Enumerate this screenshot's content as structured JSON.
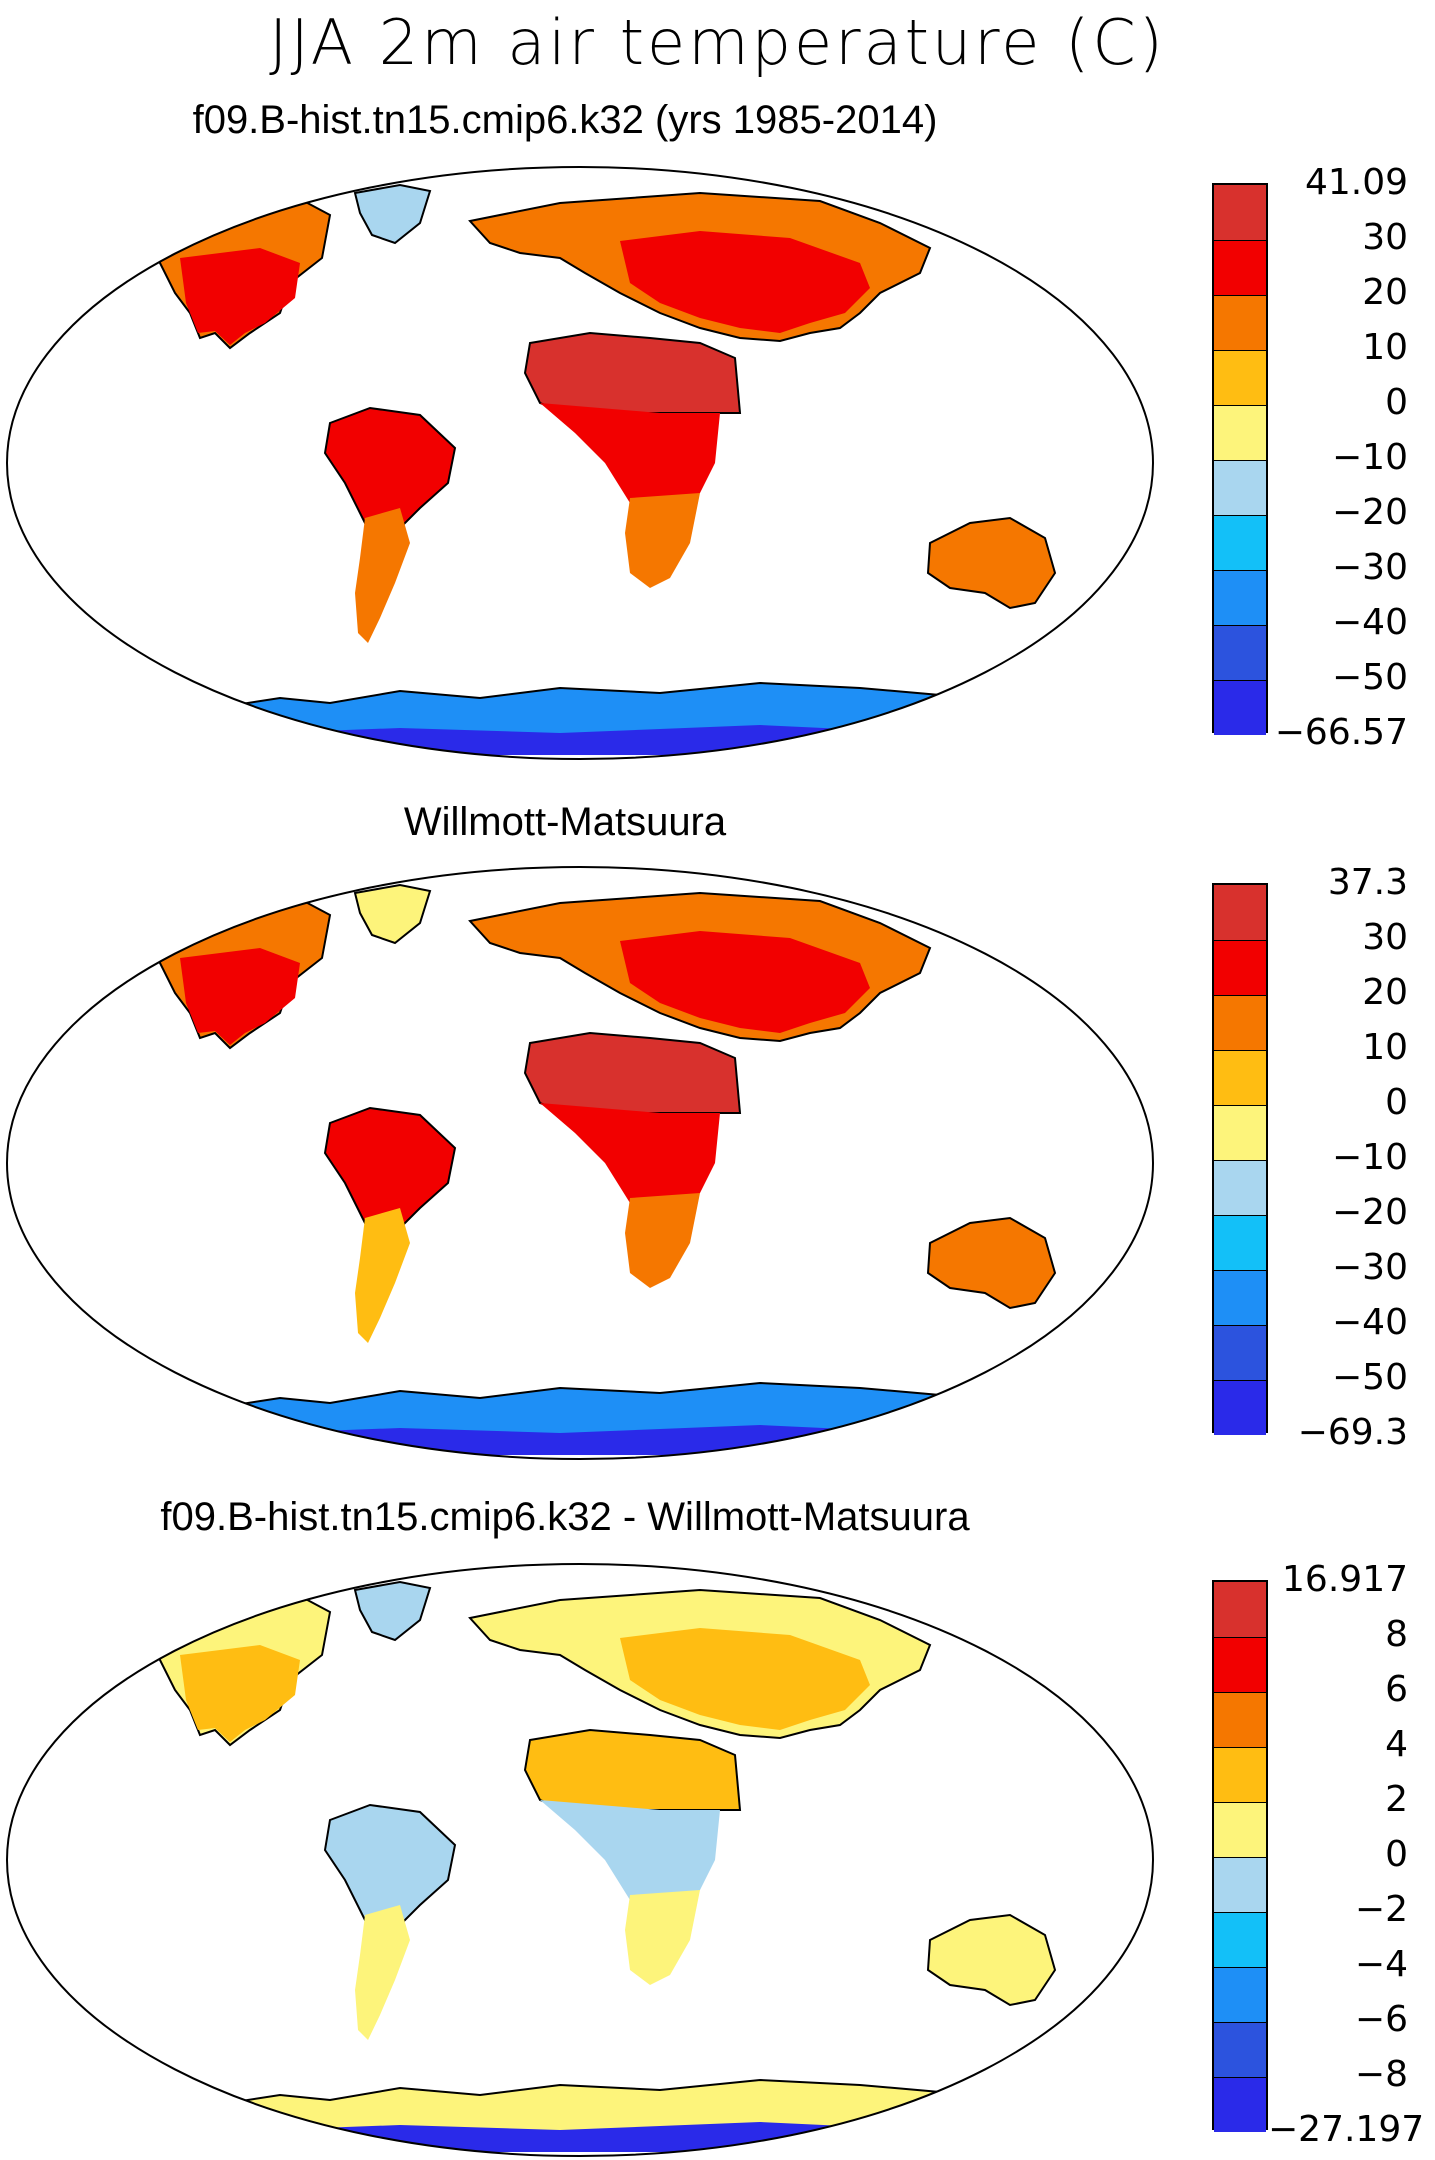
{
  "title": "JJA 2m air temperature (C)",
  "panels": [
    {
      "title": "f09.B-hist.tn15.cmip6.k32 (yrs 1985-2014)",
      "colorbar": {
        "labels": [
          "41.09",
          "30",
          "20",
          "10",
          "0",
          "−10",
          "−20",
          "−30",
          "−40",
          "−50",
          "−66.57"
        ],
        "colors": [
          "#d8312d",
          "#f20000",
          "#f57700",
          "#ffbd12",
          "#fdf47b",
          "#a9d6ef",
          "#13c0f8",
          "#1e8ff6",
          "#2c53de",
          "#2a2ae9"
        ]
      },
      "regions": {
        "north_america": "#f57700",
        "north_america_south": "#f20000",
        "greenland": "#a9d6ef",
        "eurasia": "#f57700",
        "eurasia_south": "#f20000",
        "africa_north": "#d8312d",
        "africa_central": "#f20000",
        "africa_south": "#f57700",
        "south_america_north": "#f20000",
        "south_america_south": "#f57700",
        "australia": "#f57700",
        "antarctica": "#1e8ff6",
        "antarctica_edge": "#2a2ae9"
      }
    },
    {
      "title": "Willmott-Matsuura",
      "colorbar": {
        "labels": [
          "37.3",
          "30",
          "20",
          "10",
          "0",
          "−10",
          "−20",
          "−30",
          "−40",
          "−50",
          "−69.3"
        ],
        "colors": [
          "#d8312d",
          "#f20000",
          "#f57700",
          "#ffbd12",
          "#fdf47b",
          "#a9d6ef",
          "#13c0f8",
          "#1e8ff6",
          "#2c53de",
          "#2a2ae9"
        ]
      },
      "regions": {
        "north_america": "#f57700",
        "north_america_south": "#f20000",
        "greenland": "#fdf47b",
        "eurasia": "#f57700",
        "eurasia_south": "#f20000",
        "africa_north": "#d8312d",
        "africa_central": "#f20000",
        "africa_south": "#f57700",
        "south_america_north": "#f20000",
        "south_america_south": "#ffbd12",
        "australia": "#f57700",
        "antarctica": "#1e8ff6",
        "antarctica_edge": "#2a2ae9"
      }
    },
    {
      "title": "f09.B-hist.tn15.cmip6.k32 - Willmott-Matsuura",
      "colorbar": {
        "labels": [
          "16.917",
          "8",
          "6",
          "4",
          "2",
          "0",
          "−2",
          "−4",
          "−6",
          "−8",
          "−27.197"
        ],
        "colors": [
          "#d8312d",
          "#f20000",
          "#f57700",
          "#ffbd12",
          "#fdf47b",
          "#a9d6ef",
          "#13c0f8",
          "#1e8ff6",
          "#2c53de",
          "#2a2ae9"
        ]
      },
      "regions": {
        "north_america": "#fdf47b",
        "north_america_south": "#ffbd12",
        "greenland": "#a9d6ef",
        "eurasia": "#fdf47b",
        "eurasia_south": "#ffbd12",
        "africa_north": "#ffbd12",
        "africa_central": "#a9d6ef",
        "africa_south": "#fdf47b",
        "south_america_north": "#a9d6ef",
        "south_america_south": "#fdf47b",
        "australia": "#fdf47b",
        "antarctica": "#fdf47b",
        "antarctica_edge": "#2a2ae9"
      }
    }
  ]
}
